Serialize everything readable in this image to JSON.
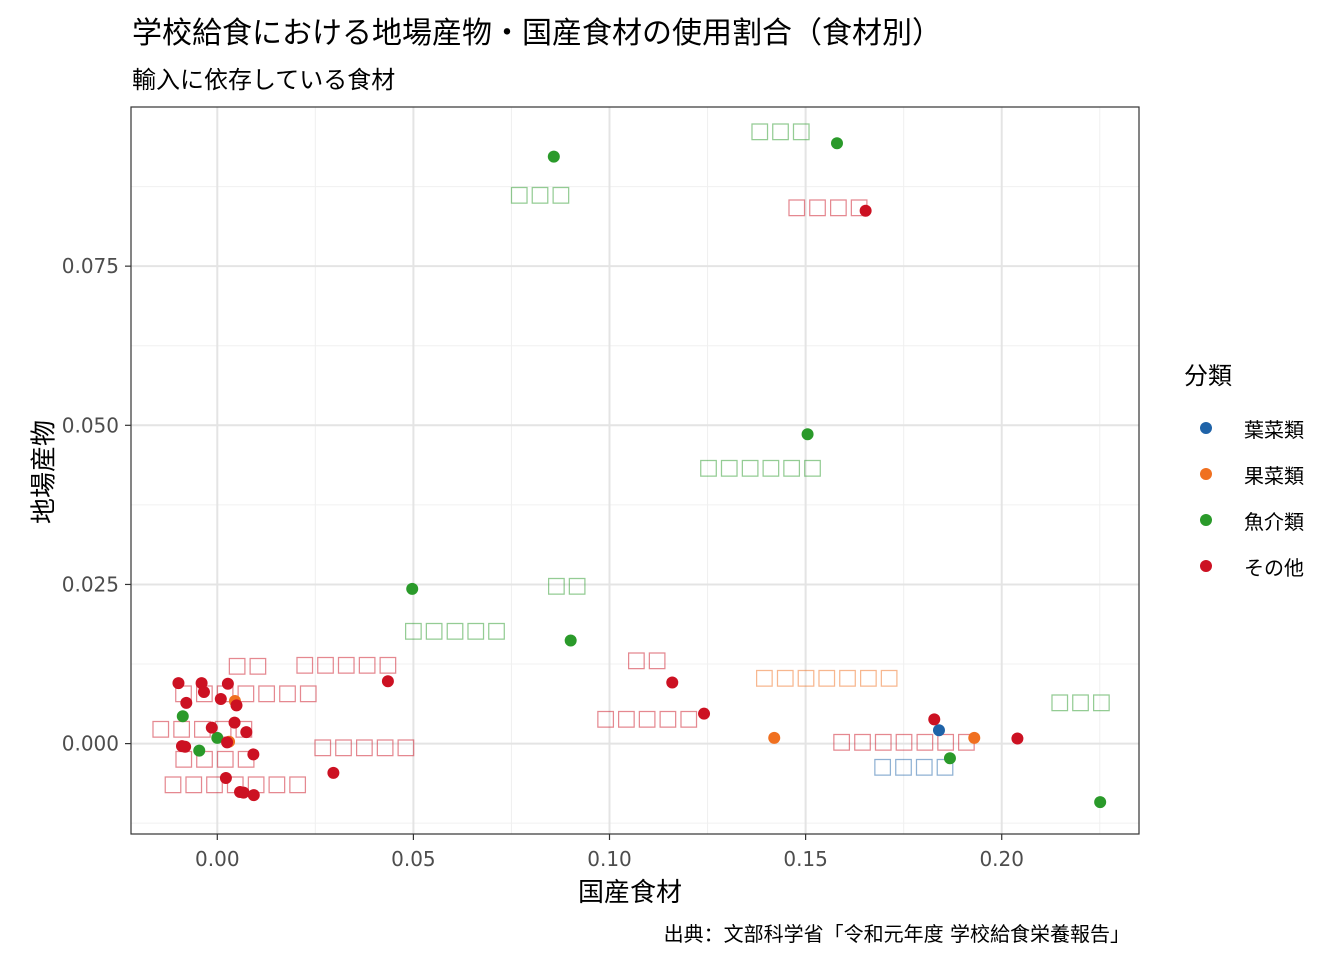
{
  "title": "学校給食における地場産物・国産食材の使用割合（食材別）",
  "subtitle": "輸入に依存している食材",
  "caption": "出典：文部科学省「令和元年度 学校給食栄養報告」",
  "legend": {
    "title": "分類",
    "items": [
      {
        "label": "葉菜類",
        "color": "#1f63a8"
      },
      {
        "label": "果菜類",
        "color": "#f07020"
      },
      {
        "label": "魚介類",
        "color": "#2a9a2a"
      },
      {
        "label": "その他",
        "color": "#cc1122"
      }
    ]
  },
  "chart_data": {
    "type": "scatter",
    "xlabel": "国産食材",
    "ylabel": "地場産物",
    "xlim": [
      -0.022,
      0.235
    ],
    "ylim": [
      -0.0142,
      0.1
    ],
    "x_ticks": [
      {
        "value": 0.0,
        "label": "0.00"
      },
      {
        "value": 0.05,
        "label": "0.05"
      },
      {
        "value": 0.1,
        "label": "0.10"
      },
      {
        "value": 0.15,
        "label": "0.15"
      },
      {
        "value": 0.2,
        "label": "0.20"
      }
    ],
    "y_ticks": [
      {
        "value": 0.0,
        "label": "0.000"
      },
      {
        "value": 0.025,
        "label": "0.025"
      },
      {
        "value": 0.05,
        "label": "0.050"
      },
      {
        "value": 0.075,
        "label": "0.075"
      }
    ],
    "grid": true,
    "legend_position": "right",
    "series": [
      {
        "name": "葉菜類",
        "color": "#1f63a8",
        "points": [
          {
            "x": 0.184,
            "y": 0.0021
          }
        ]
      },
      {
        "name": "果菜類",
        "color": "#f07020",
        "points": [
          {
            "x": 0.0045,
            "y": 0.0067
          },
          {
            "x": 0.003,
            "y": 0.0003
          },
          {
            "x": 0.142,
            "y": 0.0009
          },
          {
            "x": 0.193,
            "y": 0.0009
          }
        ]
      },
      {
        "name": "魚介類",
        "color": "#2a9a2a",
        "points": [
          {
            "x": 0.0858,
            "y": 0.0922
          },
          {
            "x": 0.158,
            "y": 0.0943
          },
          {
            "x": 0.1505,
            "y": 0.0486
          },
          {
            "x": 0.0497,
            "y": 0.0243
          },
          {
            "x": 0.0901,
            "y": 0.0162
          },
          {
            "x": -0.0088,
            "y": 0.0043
          },
          {
            "x": 0.0,
            "y": 0.0009
          },
          {
            "x": -0.0046,
            "y": -0.0011
          },
          {
            "x": 0.1868,
            "y": -0.0023
          },
          {
            "x": 0.2251,
            "y": -0.0092
          }
        ]
      },
      {
        "name": "その他",
        "color": "#cc1122",
        "points": [
          {
            "x": 0.1653,
            "y": 0.0837
          },
          {
            "x": 0.0435,
            "y": 0.0098
          },
          {
            "x": 0.116,
            "y": 0.0096
          },
          {
            "x": 0.1241,
            "y": 0.0047
          },
          {
            "x": 0.1828,
            "y": 0.0038
          },
          {
            "x": 0.204,
            "y": 0.0008
          },
          {
            "x": -0.0099,
            "y": 0.0095
          },
          {
            "x": -0.004,
            "y": 0.0095
          },
          {
            "x": 0.0027,
            "y": 0.0094
          },
          {
            "x": -0.0034,
            "y": 0.0081
          },
          {
            "x": -0.0079,
            "y": 0.0064
          },
          {
            "x": 0.0009,
            "y": 0.007
          },
          {
            "x": 0.0049,
            "y": 0.006
          },
          {
            "x": 0.0044,
            "y": 0.0033
          },
          {
            "x": -0.0014,
            "y": 0.0025
          },
          {
            "x": 0.0074,
            "y": 0.0018
          },
          {
            "x": 0.0025,
            "y": 0.0002
          },
          {
            "x": -0.009,
            "y": -0.0004
          },
          {
            "x": -0.0082,
            "y": -0.0005
          },
          {
            "x": 0.0092,
            "y": -0.0017
          },
          {
            "x": 0.0296,
            "y": -0.0046
          },
          {
            "x": 0.0022,
            "y": -0.0054
          },
          {
            "x": 0.0058,
            "y": -0.0076
          },
          {
            "x": 0.0067,
            "y": -0.0077
          },
          {
            "x": 0.0093,
            "y": -0.0081
          }
        ]
      }
    ],
    "point_labels": [
      {
        "text": "□□□",
        "x": 0.1436,
        "y": 0.0965,
        "color": "#2a9a2a"
      },
      {
        "text": "□□□",
        "x": 0.0823,
        "y": 0.0865,
        "color": "#2a9a2a"
      },
      {
        "text": "□□□□",
        "x": 0.1557,
        "y": 0.0845,
        "color": "#cc1122"
      },
      {
        "text": "□□□□□□",
        "x": 0.1385,
        "y": 0.0436,
        "color": "#2a9a2a"
      },
      {
        "text": "□□",
        "x": 0.0891,
        "y": 0.0251,
        "color": "#2a9a2a"
      },
      {
        "text": "□□□□□",
        "x": 0.0606,
        "y": 0.018,
        "color": "#2a9a2a"
      },
      {
        "text": "□□",
        "x": 0.1095,
        "y": 0.0134,
        "color": "#cc1122"
      },
      {
        "text": "□□□□□□□",
        "x": 0.1554,
        "y": 0.0106,
        "color": "#f07020"
      },
      {
        "text": "□□□",
        "x": 0.2201,
        "y": 0.0068,
        "color": "#2a9a2a"
      },
      {
        "text": "□□□□□",
        "x": 0.1096,
        "y": 0.0042,
        "color": "#cc1122"
      },
      {
        "text": "□□□□□□□",
        "x": 0.1751,
        "y": 0.0006,
        "color": "#cc1122"
      },
      {
        "text": "□□□□",
        "x": 0.1776,
        "y": -0.0034,
        "color": "#1f63a8"
      },
      {
        "text": "□□",
        "x": 0.0077,
        "y": 0.0125,
        "color": "#cc1122"
      },
      {
        "text": "□□□□□",
        "x": 0.0329,
        "y": 0.0127,
        "color": "#cc1122"
      },
      {
        "text": "□□□□□□□",
        "x": 0.0073,
        "y": 0.0082,
        "color": "#cc1122"
      },
      {
        "text": "□□□□□",
        "x": -0.0038,
        "y": 0.0026,
        "color": "#cc1122"
      },
      {
        "text": "□□□□□",
        "x": 0.0375,
        "y": -0.0003,
        "color": "#cc1122"
      },
      {
        "text": "□□□□",
        "x": -0.0006,
        "y": -0.0021,
        "color": "#cc1122"
      },
      {
        "text": "□□□□□□□",
        "x": 0.0046,
        "y": -0.0061,
        "color": "#cc1122"
      }
    ]
  }
}
